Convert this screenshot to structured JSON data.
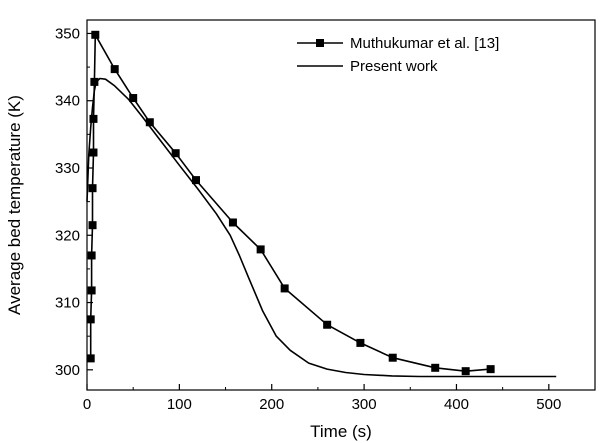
{
  "chart_data": {
    "type": "line",
    "xlabel": "Time (s)",
    "ylabel": "Average bed temperature (K)",
    "xlim": [
      0,
      550
    ],
    "ylim": [
      297,
      352
    ],
    "x_ticks": [
      0,
      100,
      200,
      300,
      400,
      500
    ],
    "y_ticks": [
      300,
      310,
      320,
      330,
      340,
      350
    ],
    "grid": false,
    "legend_position": "top-right",
    "series": [
      {
        "name": "Muthukumar et al. [13]",
        "marker": "square",
        "color": "#000000",
        "x": [
          4,
          4,
          5,
          5,
          6,
          6,
          7,
          7,
          8,
          9,
          30,
          50,
          68,
          96,
          118,
          158,
          188,
          214,
          260,
          296,
          331,
          377,
          410,
          437
        ],
        "y": [
          301.7,
          307.5,
          311.8,
          317,
          321.5,
          327,
          332.3,
          337.3,
          342.8,
          349.8,
          344.7,
          340.4,
          336.8,
          332.2,
          328.2,
          321.9,
          317.9,
          312.1,
          306.7,
          304.0,
          301.8,
          300.3,
          299.8,
          300.1
        ]
      },
      {
        "name": "Present work",
        "marker": "none",
        "color": "#000000",
        "x": [
          0,
          2,
          4,
          6,
          8,
          10,
          14,
          20,
          30,
          45,
          60,
          80,
          100,
          120,
          140,
          155,
          165,
          175,
          190,
          205,
          220,
          240,
          260,
          280,
          300,
          330,
          360,
          400,
          450,
          508
        ],
        "y": [
          325,
          332,
          336,
          339,
          341.5,
          342.8,
          343.3,
          343.2,
          342.2,
          340.2,
          337.6,
          334.0,
          330.4,
          326.9,
          323.2,
          320.0,
          317.0,
          313.7,
          308.8,
          305.0,
          302.9,
          301.0,
          300.1,
          299.6,
          299.3,
          299.1,
          299.0,
          299.0,
          299.0,
          299.0
        ]
      }
    ]
  }
}
